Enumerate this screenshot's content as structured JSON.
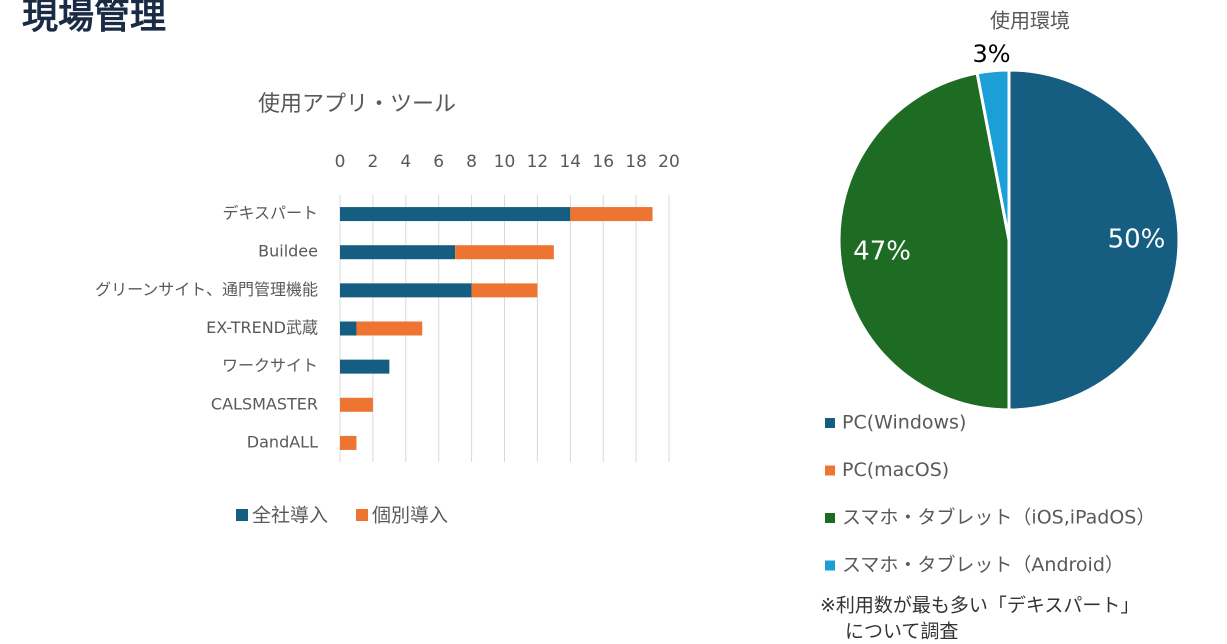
{
  "title": "現場管理",
  "note": [
    "※利用数が最も多い「デキスパート」",
    "について調査"
  ],
  "chart_data": [
    {
      "type": "stacked-barh",
      "title": "使用アプリ・ツール",
      "categories": [
        "デキスパート",
        "Buildee",
        "グリーンサイト、通門管理機能",
        "EX-TREND武蔵",
        "ワークサイト",
        "CALSMASTER",
        "DandALL"
      ],
      "series": [
        {
          "name": "全社導入",
          "color": "#155e82",
          "values": [
            14,
            7,
            8,
            1,
            3,
            0,
            0
          ]
        },
        {
          "name": "個別導入",
          "color": "#ed7431",
          "values": [
            5,
            6,
            4,
            4,
            0,
            2,
            1
          ]
        }
      ],
      "xlim": [
        0,
        20
      ],
      "xticks": [
        0,
        2,
        4,
        6,
        8,
        10,
        12,
        14,
        16,
        18,
        20
      ],
      "grid": true,
      "legend": "bottom"
    },
    {
      "type": "pie",
      "title": "使用環境",
      "categories": [
        "PC(Windows)",
        "PC(macOS)",
        "スマホ・タブレット（iOS,iPadOS）",
        "スマホ・タブレット（Android）"
      ],
      "values": [
        50,
        0,
        47,
        3
      ],
      "value_labels": [
        "50%",
        null,
        "47%",
        "3%"
      ],
      "colors": [
        "#155e82",
        "#ed7431",
        "#1e6b24",
        "#1b9fd6"
      ],
      "legend": "bottom"
    }
  ]
}
